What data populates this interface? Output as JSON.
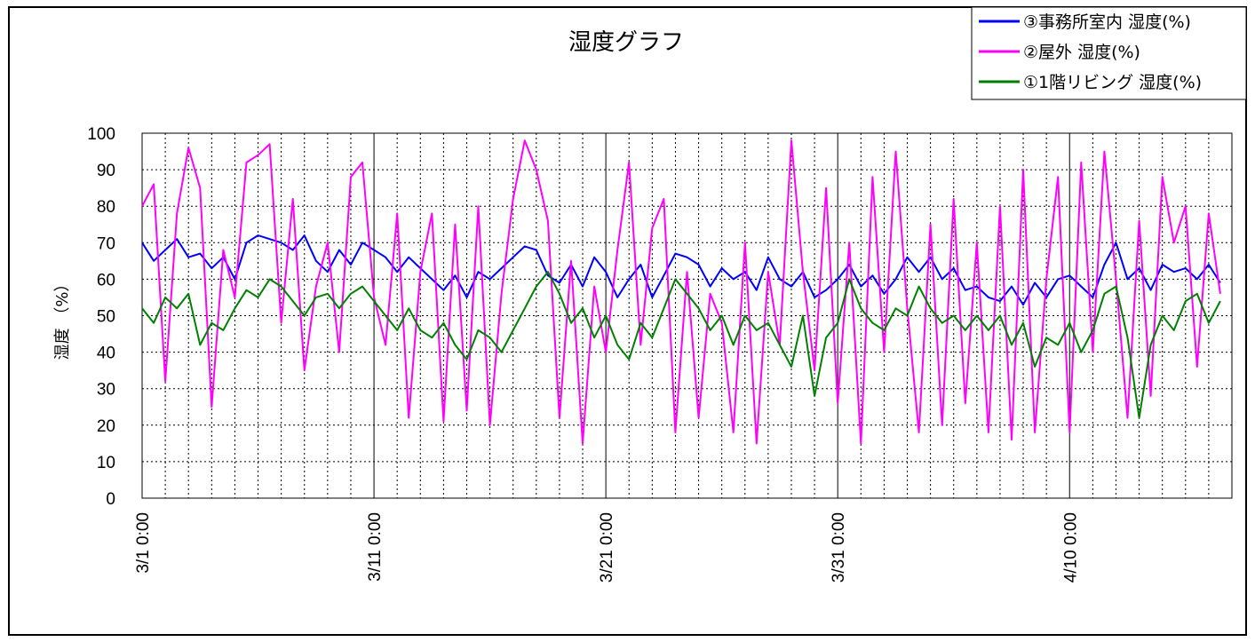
{
  "chart_data": {
    "type": "line",
    "title": "湿度グラフ",
    "ylabel": "湿度 （%）",
    "xlabel": "",
    "ylim": [
      0,
      100
    ],
    "yticks": [
      0,
      10,
      20,
      30,
      40,
      50,
      60,
      70,
      80,
      90,
      100
    ],
    "x_range_days": [
      0,
      47
    ],
    "xtick_labels": [
      "3/1 0:00",
      "3/11 0:00",
      "3/21 0:00",
      "3/31 0:00",
      "4/10 0:00"
    ],
    "xtick_days": [
      0,
      10,
      20,
      30,
      40
    ],
    "grid": true,
    "legend_position": "top-right",
    "series": [
      {
        "name": "③事務所室内 湿度(%)",
        "color": "#0000ff",
        "x_days": [
          0,
          0.5,
          1,
          1.5,
          2,
          2.5,
          3,
          3.5,
          4,
          4.5,
          5,
          5.5,
          6,
          6.5,
          7,
          7.5,
          8,
          8.5,
          9,
          9.5,
          10,
          10.5,
          11,
          11.5,
          12,
          12.5,
          13,
          13.5,
          14,
          14.5,
          15,
          15.5,
          16,
          16.5,
          17,
          17.5,
          18,
          18.5,
          19,
          19.5,
          20,
          20.5,
          21,
          21.5,
          22,
          22.5,
          23,
          23.5,
          24,
          24.5,
          25,
          25.5,
          26,
          26.5,
          27,
          27.5,
          28,
          28.5,
          29,
          29.5,
          30,
          30.5,
          31,
          31.5,
          32,
          32.5,
          33,
          33.5,
          34,
          34.5,
          35,
          35.5,
          36,
          36.5,
          37,
          37.5,
          38,
          38.5,
          39,
          39.5,
          40,
          40.5,
          41,
          41.5,
          42,
          42.5,
          43,
          43.5,
          44,
          44.5,
          45,
          45.5,
          46,
          46.5
        ],
        "values": [
          70,
          65,
          68,
          71,
          66,
          67,
          63,
          66,
          60,
          70,
          72,
          71,
          70,
          68,
          72,
          65,
          62,
          68,
          64,
          70,
          68,
          66,
          62,
          66,
          63,
          60,
          57,
          61,
          55,
          62,
          60,
          63,
          66,
          69,
          68,
          61,
          59,
          64,
          58,
          66,
          62,
          55,
          60,
          64,
          55,
          61,
          67,
          66,
          64,
          58,
          63,
          60,
          62,
          57,
          66,
          60,
          58,
          62,
          55,
          57,
          60,
          64,
          58,
          61,
          56,
          60,
          66,
          62,
          66,
          60,
          63,
          57,
          58,
          55,
          54,
          58,
          53,
          59,
          55,
          60,
          61,
          58,
          55,
          64,
          70,
          60,
          63,
          57,
          64,
          62,
          63,
          60,
          64,
          59
        ]
      },
      {
        "name": "②屋外 湿度(%)",
        "color": "#ff00ff",
        "x_days": [
          0,
          0.5,
          1,
          1.5,
          2,
          2.5,
          3,
          3.5,
          4,
          4.5,
          5,
          5.5,
          6,
          6.5,
          7,
          7.5,
          8,
          8.5,
          9,
          9.5,
          10,
          10.5,
          11,
          11.5,
          12,
          12.5,
          13,
          13.5,
          14,
          14.5,
          15,
          15.5,
          16,
          16.5,
          17,
          17.5,
          18,
          18.5,
          19,
          19.5,
          20,
          20.5,
          21,
          21.5,
          22,
          22.5,
          23,
          23.5,
          24,
          24.5,
          25,
          25.5,
          26,
          26.5,
          27,
          27.5,
          28,
          28.5,
          29,
          29.5,
          30,
          30.5,
          31,
          31.5,
          32,
          32.5,
          33,
          33.5,
          34,
          34.5,
          35,
          35.5,
          36,
          36.5,
          37,
          37.5,
          38,
          38.5,
          39,
          39.5,
          40,
          40.5,
          41,
          41.5,
          42,
          42.5,
          43,
          43.5,
          44,
          44.5,
          45,
          45.5,
          46,
          46.5
        ],
        "values": [
          80,
          86,
          32,
          78,
          96,
          85,
          25,
          68,
          55,
          92,
          94,
          97,
          48,
          82,
          35,
          58,
          70,
          40,
          88,
          92,
          55,
          42,
          78,
          22,
          62,
          78,
          21,
          75,
          24,
          80,
          20,
          56,
          82,
          98,
          90,
          76,
          22,
          65,
          15,
          58,
          40,
          68,
          92,
          42,
          74,
          82,
          18,
          62,
          22,
          56,
          48,
          18,
          70,
          15,
          62,
          42,
          98,
          62,
          35,
          85,
          26,
          70,
          15,
          88,
          40,
          95,
          52,
          18,
          75,
          20,
          82,
          26,
          70,
          18,
          80,
          16,
          90,
          18,
          60,
          88,
          18,
          92,
          40,
          95,
          60,
          22,
          76,
          28,
          88,
          70,
          80,
          36,
          78,
          56
        ]
      },
      {
        "name": "①1階リビング 湿度(%)",
        "color": "#008000",
        "x_days": [
          0,
          0.5,
          1,
          1.5,
          2,
          2.5,
          3,
          3.5,
          4,
          4.5,
          5,
          5.5,
          6,
          6.5,
          7,
          7.5,
          8,
          8.5,
          9,
          9.5,
          10,
          10.5,
          11,
          11.5,
          12,
          12.5,
          13,
          13.5,
          14,
          14.5,
          15,
          15.5,
          16,
          16.5,
          17,
          17.5,
          18,
          18.5,
          19,
          19.5,
          20,
          20.5,
          21,
          21.5,
          22,
          22.5,
          23,
          23.5,
          24,
          24.5,
          25,
          25.5,
          26,
          26.5,
          27,
          27.5,
          28,
          28.5,
          29,
          29.5,
          30,
          30.5,
          31,
          31.5,
          32,
          32.5,
          33,
          33.5,
          34,
          34.5,
          35,
          35.5,
          36,
          36.5,
          37,
          37.5,
          38,
          38.5,
          39,
          39.5,
          40,
          40.5,
          41,
          41.5,
          42,
          42.5,
          43,
          43.5,
          44,
          44.5,
          45,
          45.5,
          46,
          46.5
        ],
        "values": [
          52,
          48,
          55,
          52,
          56,
          42,
          48,
          46,
          52,
          57,
          55,
          60,
          58,
          54,
          50,
          55,
          56,
          52,
          56,
          58,
          54,
          50,
          46,
          52,
          46,
          44,
          48,
          42,
          38,
          46,
          44,
          40,
          46,
          52,
          58,
          62,
          56,
          48,
          52,
          44,
          50,
          42,
          38,
          48,
          44,
          52,
          60,
          56,
          52,
          46,
          50,
          42,
          50,
          46,
          48,
          42,
          36,
          50,
          28,
          44,
          48,
          60,
          52,
          48,
          46,
          52,
          50,
          58,
          52,
          48,
          50,
          46,
          50,
          46,
          50,
          42,
          48,
          36,
          44,
          42,
          48,
          40,
          46,
          56,
          58,
          44,
          22,
          42,
          50,
          46,
          54,
          56,
          48,
          54
        ]
      }
    ]
  }
}
